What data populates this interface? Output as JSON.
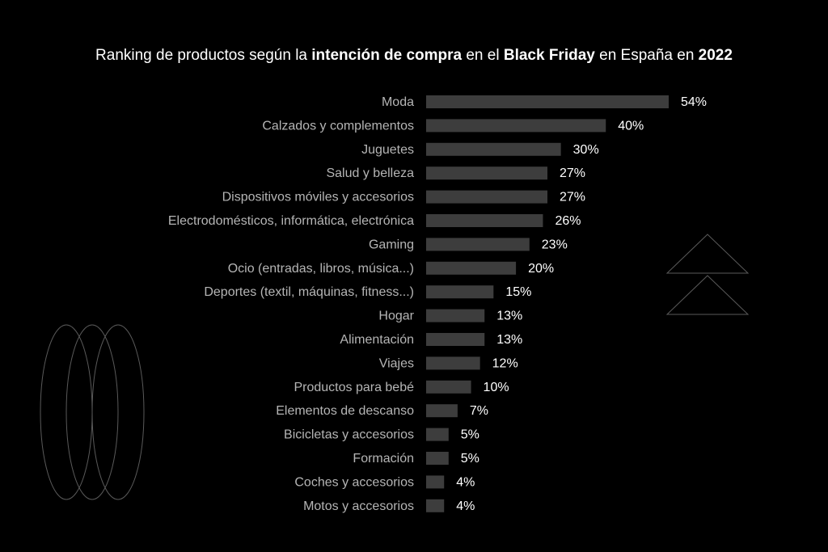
{
  "title": {
    "part1": "Ranking de productos según la ",
    "bold1": "intención de compra",
    "part2": " en el ",
    "bold2": "Black Friday",
    "part3": " en España en ",
    "bold3": "2022"
  },
  "colors": {
    "background": "#000000",
    "bar": "#3d3d3d",
    "category_label": "#b5b5b5",
    "value_label": "#ffffff",
    "decoration_stroke": "#5a5a5a"
  },
  "chart_data": {
    "type": "bar",
    "orientation": "horizontal",
    "title": "Ranking de productos según la intención de compra en el Black Friday en España en 2022",
    "categories": [
      "Moda",
      "Calzados y complementos",
      "Juguetes",
      "Salud y belleza",
      "Dispositivos móviles y accesorios",
      "Electrodomésticos, informática, electrónica",
      "Gaming",
      "Ocio (entradas, libros, música...)",
      "Deportes (textil, máquinas, fitness...)",
      "Hogar",
      "Alimentación",
      "Viajes",
      "Productos para bebé",
      "Elementos de descanso",
      "Bicicletas y accesorios",
      "Formación",
      "Coches y accesorios",
      "Motos y accesorios"
    ],
    "values": [
      54,
      40,
      30,
      27,
      27,
      26,
      23,
      20,
      15,
      13,
      13,
      12,
      10,
      7,
      5,
      5,
      4,
      4
    ],
    "value_labels": [
      "54%",
      "40%",
      "30%",
      "27%",
      "27%",
      "26%",
      "23%",
      "20%",
      "15%",
      "13%",
      "13%",
      "12%",
      "10%",
      "7%",
      "5%",
      "5%",
      "4%",
      "4%"
    ],
    "unit": "%",
    "xlabel": "",
    "ylabel": "",
    "xlim": [
      0,
      54
    ],
    "grid": false,
    "legend": "none"
  }
}
